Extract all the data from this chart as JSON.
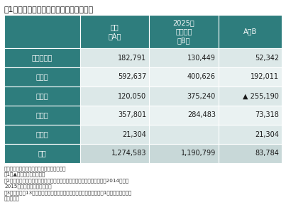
{
  "title": "表1：地域医療構想に盛り込まれた病床数",
  "headers": [
    "",
    "現状\n（A）",
    "2025年\n必要病床\n（B）",
    "A－B"
  ],
  "rows": [
    {
      "label": "高度急性期",
      "col_a": "182,791",
      "col_b": "130,449",
      "col_c": "52,342",
      "flag": ""
    },
    {
      "label": "急性期",
      "col_a": "592,637",
      "col_b": "400,626",
      "col_c": "192,011",
      "flag": ""
    },
    {
      "label": "回復期",
      "col_a": "120,050",
      "col_b": "375,240",
      "col_c": "255,190",
      "flag": "▲"
    },
    {
      "label": "慢性期",
      "col_a": "357,801",
      "col_b": "284,483",
      "col_c": "73,318",
      "flag": ""
    },
    {
      "label": "その他",
      "col_a": "21,304",
      "col_b": "",
      "col_c": "21,304",
      "flag": ""
    },
    {
      "label": "合計",
      "col_a": "1,274,583",
      "col_b": "1,190,799",
      "col_c": "83,784",
      "flag": ""
    }
  ],
  "footer_lines": [
    "出典：各都道府県の地域医療構想を基に作成",
    "注1：▲は不足を意味する。",
    "注2：「現状」は地域医療構想に盛り込まれた数字をベースとしており、2014年度と",
    "2015年度の双方が含まれる。",
    "注3：秋田など13県は未報告などの「その他」を計上しておらず、表1の数字にも含まれ",
    "ていない。"
  ],
  "header_bg": "#2e7d7d",
  "label_bg": "#2e7d7d",
  "row_bg_light": "#dce8e8",
  "row_bg_lighter": "#eaf2f2",
  "total_bg": "#c8d8d8",
  "header_fg": "#ffffff",
  "data_fg": "#1a1a1a",
  "footer_fg": "#333333",
  "border_color": "#ffffff",
  "title_color": "#111111"
}
